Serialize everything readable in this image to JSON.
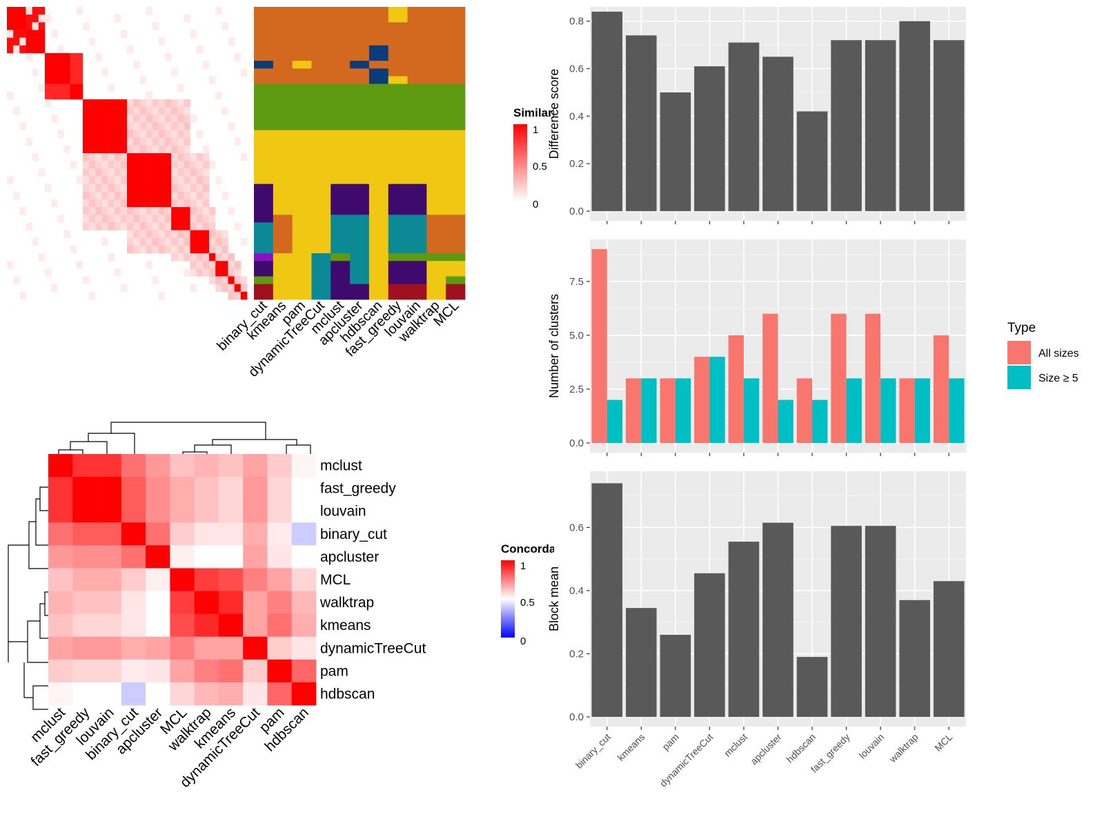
{
  "chart_data": [
    {
      "type": "heatmap",
      "name": "similarity-heatmap",
      "legend_title": "Similarity",
      "legend_ticks": [
        "1",
        "0.5",
        "0"
      ],
      "color_low": "#ffffff",
      "color_high": "#ff0000",
      "cluster_sizes": [
        3,
        3,
        2,
        1,
        1,
        3,
        4,
        5,
        3,
        3,
        3,
        1,
        1,
        1,
        1
      ],
      "notes_blocks": [
        {
          "a": 0,
          "b": 0,
          "v": 1.0
        },
        {
          "a": 1,
          "b": 1,
          "v": 1.0
        },
        {
          "a": 2,
          "b": 2,
          "v": 1.0
        },
        {
          "a": 3,
          "b": 3,
          "v": 1.0
        },
        {
          "a": 4,
          "b": 4,
          "v": 1.0
        },
        {
          "a": 5,
          "b": 5,
          "v": 1.0
        },
        {
          "a": 6,
          "b": 6,
          "v": 1.0
        },
        {
          "a": 7,
          "b": 7,
          "v": 1.0
        },
        {
          "a": 8,
          "b": 8,
          "v": 1.0
        },
        {
          "a": 9,
          "b": 9,
          "v": 1.0
        },
        {
          "a": 10,
          "b": 10,
          "v": 1.0
        },
        {
          "a": 11,
          "b": 11,
          "v": 1.0
        },
        {
          "a": 12,
          "b": 12,
          "v": 1.0
        },
        {
          "a": 13,
          "b": 13,
          "v": 1.0
        },
        {
          "a": 14,
          "b": 14,
          "v": 1.0
        }
      ]
    },
    {
      "type": "heatmap",
      "name": "cluster-assignment",
      "columns": [
        "binary_cut",
        "kmeans",
        "pam",
        "dynamicTreeCut",
        "mclust",
        "apcluster",
        "hdbscan",
        "fast_greedy",
        "louvain",
        "walktrap",
        "MCL"
      ],
      "palette": {
        "A": "#d2691e",
        "B": "#5e9a10",
        "C": "#f0c814",
        "D": "#0a3c7a",
        "E": "#3f0a6e",
        "F": "#0b8a96",
        "G": "#a0101e",
        "H": "#8c10c8"
      },
      "segments": [
        [
          "A:3,B:2,C:5",
          "A:3,B:2,C:5",
          "A:3,B:2,C:5",
          "A:3,B:2,C:5",
          "A:3,B:2,C:5",
          "A:3,B:2,C:5",
          "C:1,A:4,B:2,C:3",
          "A:3,B:2,C:5",
          "A:3,B:2,C:5",
          "A:3,B:2,C:5",
          "A:3,B:2,C:5"
        ]
      ],
      "rows": [
        "AAAAAAACAAA",
        "AAAAAAACAAA",
        "AAAAAAAAAAA",
        "AAAAAAAAAAA",
        "AAAAAAAAAAA",
        "AAAAAADAAAA",
        "AAAAAADAAAA",
        "DACAADAAAAA",
        "AAAAAADAAAA",
        "AAAAAADCAAA",
        "BBBBBBBBBBB",
        "BBBBBBBBBBB",
        "BBBBBBBBBBB",
        "BBBBBBBBBBB",
        "BBBBBBBBBBB",
        "BBBBBBBBBBB",
        "CCCCCCCCCCC",
        "CCCCCCCCCCC",
        "CCCCCCCCCCC",
        "CCCCCCCCCCC",
        "CCCCCCCCCCC",
        "CCCCCCCCCCC",
        "CCCCCCCCCCC",
        "ECCCEECEECC",
        "ECCCEECEECC",
        "ECCCEECEECC",
        "ECCCEECEECC",
        "EACCFFCFFAA",
        "FACCFFCFFAA",
        "FACCFFCFFAA",
        "FACCFFCFFAA",
        "FACCFFCFFAA",
        "HCCFBFCBBBB",
        "ECCFEFCEECC",
        "ECCFEFCEECC",
        "BCCFEFCEECB",
        "GCCFEECGGCG",
        "GCCFEECGGCG"
      ],
      "row_colors_note": "cluster colors per column"
    },
    {
      "type": "bar",
      "name": "difference-score",
      "categories": [
        "binary_cut",
        "kmeans",
        "pam",
        "dynamicTreeCut",
        "mclust",
        "apcluster",
        "hdbscan",
        "fast_greedy",
        "louvain",
        "walktrap",
        "MCL"
      ],
      "values": [
        0.84,
        0.74,
        0.5,
        0.61,
        0.71,
        0.65,
        0.42,
        0.72,
        0.72,
        0.8,
        0.72
      ],
      "ylabel": "Difference score",
      "ylim": [
        0,
        0.86
      ],
      "yticks": [
        0,
        0.2,
        0.4,
        0.6,
        0.8
      ],
      "ytick_labels": [
        "0.0",
        "0.2",
        "0.4",
        "0.6",
        "0.8"
      ],
      "color": "#595959",
      "grid": true
    },
    {
      "type": "bar",
      "name": "number-of-clusters",
      "categories": [
        "binary_cut",
        "kmeans",
        "pam",
        "dynamicTreeCut",
        "mclust",
        "apcluster",
        "hdbscan",
        "fast_greedy",
        "louvain",
        "walktrap",
        "MCL"
      ],
      "series": [
        {
          "name": "All sizes",
          "values": [
            9,
            3,
            3,
            4,
            5,
            6,
            3,
            6,
            6,
            3,
            5
          ],
          "color": "#f8766d"
        },
        {
          "name": "Size ≥ 5",
          "values": [
            2,
            3,
            3,
            4,
            3,
            2,
            2,
            3,
            3,
            3,
            3
          ],
          "color": "#00bfc4"
        }
      ],
      "ylabel": "Number of clusters",
      "ylim": [
        0,
        9.45
      ],
      "yticks": [
        0,
        2.5,
        5,
        7.5
      ],
      "ytick_labels": [
        "0.0",
        "2.5",
        "5.0",
        "7.5"
      ],
      "legend_title": "Type",
      "legend_position": "right",
      "grid": true
    },
    {
      "type": "bar",
      "name": "block-mean",
      "categories": [
        "binary_cut",
        "kmeans",
        "pam",
        "dynamicTreeCut",
        "mclust",
        "apcluster",
        "hdbscan",
        "fast_greedy",
        "louvain",
        "walktrap",
        "MCL"
      ],
      "values": [
        0.74,
        0.345,
        0.26,
        0.455,
        0.555,
        0.615,
        0.19,
        0.605,
        0.605,
        0.37,
        0.43
      ],
      "ylabel": "Block mean",
      "ylim": [
        0,
        0.778
      ],
      "yticks": [
        0,
        0.2,
        0.4,
        0.6
      ],
      "ytick_labels": [
        "0.0",
        "0.2",
        "0.4",
        "0.6"
      ],
      "color": "#595959",
      "grid": true
    },
    {
      "type": "heatmap",
      "name": "concordance-heatmap",
      "rows": [
        "mclust",
        "fast_greedy",
        "louvain",
        "binary_cut",
        "apcluster",
        "MCL",
        "walktrap",
        "kmeans",
        "dynamicTreeCut",
        "pam",
        "hdbscan"
      ],
      "columns": [
        "mclust",
        "fast_greedy",
        "louvain",
        "binary_cut",
        "apcluster",
        "MCL",
        "walktrap",
        "kmeans",
        "dynamicTreeCut",
        "pam",
        "hdbscan"
      ],
      "values": [
        [
          1.0,
          0.9,
          0.9,
          0.78,
          0.7,
          0.62,
          0.65,
          0.62,
          0.68,
          0.6,
          0.52
        ],
        [
          0.9,
          1.0,
          1.0,
          0.82,
          0.72,
          0.66,
          0.62,
          0.58,
          0.7,
          0.58,
          0.5
        ],
        [
          0.9,
          1.0,
          1.0,
          0.82,
          0.72,
          0.66,
          0.62,
          0.58,
          0.7,
          0.58,
          0.5
        ],
        [
          0.78,
          0.82,
          0.82,
          1.0,
          0.78,
          0.6,
          0.55,
          0.55,
          0.66,
          0.54,
          0.4
        ],
        [
          0.7,
          0.72,
          0.72,
          0.78,
          1.0,
          0.53,
          0.5,
          0.5,
          0.68,
          0.55,
          0.5
        ],
        [
          0.62,
          0.66,
          0.66,
          0.6,
          0.53,
          1.0,
          0.88,
          0.85,
          0.75,
          0.68,
          0.58
        ],
        [
          0.65,
          0.62,
          0.62,
          0.55,
          0.5,
          0.88,
          1.0,
          0.92,
          0.68,
          0.75,
          0.64
        ],
        [
          0.62,
          0.58,
          0.58,
          0.55,
          0.5,
          0.85,
          0.92,
          1.0,
          0.68,
          0.78,
          0.66
        ],
        [
          0.68,
          0.7,
          0.7,
          0.66,
          0.68,
          0.75,
          0.68,
          0.68,
          1.0,
          0.6,
          0.55
        ],
        [
          0.6,
          0.58,
          0.58,
          0.54,
          0.55,
          0.68,
          0.75,
          0.78,
          0.6,
          1.0,
          0.8
        ],
        [
          0.52,
          0.5,
          0.5,
          0.4,
          0.5,
          0.58,
          0.64,
          0.66,
          0.55,
          0.8,
          1.0
        ]
      ],
      "legend_title": "Concordance",
      "legend_ticks": [
        "1",
        "0.5",
        "0"
      ],
      "color_low": "#0000ff",
      "color_mid": "#ffffff",
      "color_high": "#ff0000"
    }
  ],
  "similarity_cells": [
    [
      0,
      0,
      6,
      6,
      1.0
    ],
    [
      6,
      0,
      9,
      6,
      1.0
    ],
    [
      9,
      6,
      12,
      9,
      1.0
    ],
    [
      18,
      18,
      30,
      30,
      1.0
    ],
    [
      30,
      30,
      42,
      42,
      1.0
    ],
    [
      42,
      42,
      52,
      52,
      1.0
    ],
    [
      52,
      52,
      56,
      56,
      1.0
    ],
    [
      56,
      56,
      60,
      60,
      1.0
    ],
    [
      60,
      60,
      63,
      63,
      1.0
    ],
    [
      63,
      63,
      66,
      66,
      1.0
    ],
    [
      66,
      66,
      68,
      68,
      1.0
    ]
  ]
}
